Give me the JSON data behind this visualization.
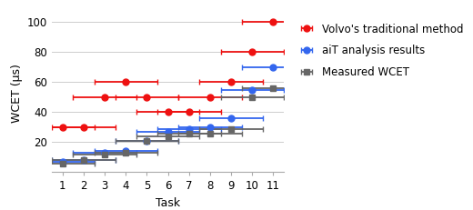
{
  "tasks": [
    1,
    2,
    3,
    4,
    5,
    6,
    7,
    8,
    9,
    10,
    11
  ],
  "volvo": [
    30,
    30,
    50,
    60,
    50,
    40,
    40,
    50,
    60,
    80,
    100
  ],
  "ait": [
    7,
    8,
    13,
    14,
    21,
    27,
    29,
    30,
    36,
    55,
    70
  ],
  "measured": [
    6,
    8,
    12,
    13,
    21,
    24,
    26,
    26,
    29,
    50,
    56
  ],
  "volvo_xerr": 1.5,
  "ait_xerr": 1.5,
  "meas_xerr": 1.5,
  "volvo_color": "#ee1111",
  "ait_color": "#3366ee",
  "meas_color": "#666666",
  "ylabel": "WCET (μs)",
  "xlabel": "Task",
  "ylim": [
    0,
    105
  ],
  "yticks": [
    20,
    40,
    60,
    80,
    100
  ],
  "legend_labels": [
    "Volvo's traditional method",
    "aiT analysis results",
    "Measured WCET"
  ],
  "bg_color": "#ffffff",
  "grid_color": "#cccccc"
}
